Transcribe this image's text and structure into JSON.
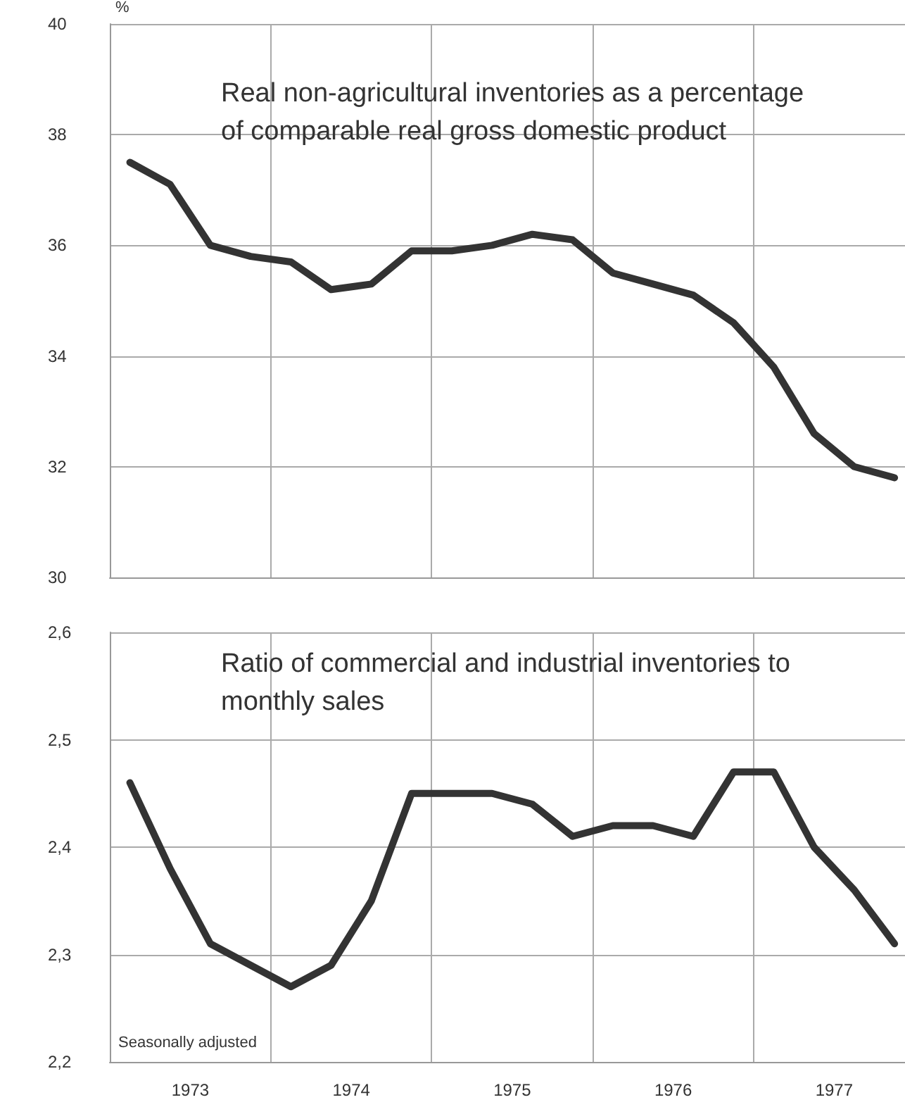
{
  "chart_data": [
    {
      "type": "line",
      "title": "Real non-agricultural inventories as a percentage of comparable real gross domestic product",
      "ylabel": "%",
      "x": [
        1973.125,
        1973.375,
        1973.625,
        1973.875,
        1974.125,
        1974.375,
        1974.625,
        1974.875,
        1975.125,
        1975.375,
        1975.625,
        1975.875,
        1976.125,
        1976.375,
        1976.625,
        1976.875,
        1977.125,
        1977.375,
        1977.625,
        1977.875
      ],
      "values": [
        37.5,
        37.1,
        36.0,
        35.8,
        35.7,
        35.2,
        35.3,
        35.9,
        35.9,
        36.0,
        36.2,
        36.1,
        35.5,
        35.3,
        35.1,
        34.6,
        33.8,
        32.6,
        32.0,
        31.8
      ],
      "color": "#333333",
      "line_style": "solid",
      "marker": "none",
      "xlim": [
        1973,
        1977.94
      ],
      "xticks": [
        {
          "value": 1974,
          "label": null
        },
        {
          "value": 1975,
          "label": null
        },
        {
          "value": 1976,
          "label": null
        },
        {
          "value": 1977,
          "label": null
        }
      ],
      "ylim": [
        30,
        40
      ],
      "yticks": [
        30,
        32,
        34,
        36,
        38,
        40
      ],
      "grid": true,
      "tick_labels": "y"
    },
    {
      "type": "line",
      "title": "Ratio of commercial and industrial inventories to monthly sales",
      "annotations": [
        "Seasonally adjusted"
      ],
      "x": [
        1973.125,
        1973.375,
        1973.625,
        1973.875,
        1974.125,
        1974.375,
        1974.625,
        1974.875,
        1975.125,
        1975.375,
        1975.625,
        1975.875,
        1976.125,
        1976.375,
        1976.625,
        1976.875,
        1977.125,
        1977.375,
        1977.625,
        1977.875
      ],
      "values": [
        2.46,
        2.38,
        2.31,
        2.29,
        2.27,
        2.29,
        2.35,
        2.45,
        2.45,
        2.45,
        2.44,
        2.41,
        2.42,
        2.42,
        2.41,
        2.47,
        2.47,
        2.4,
        2.36,
        2.31
      ],
      "color": "#333333",
      "line_style": "solid",
      "marker": "none",
      "xlim": [
        1973,
        1977.94
      ],
      "xticks": [
        {
          "value": 1973.5,
          "label": "1973"
        },
        {
          "value": 1974,
          "label": null
        },
        {
          "value": 1974.5,
          "label": "1974"
        },
        {
          "value": 1975,
          "label": null
        },
        {
          "value": 1975.5,
          "label": "1975"
        },
        {
          "value": 1976,
          "label": null
        },
        {
          "value": 1976.5,
          "label": "1976"
        },
        {
          "value": 1977,
          "label": null
        },
        {
          "value": 1977.5,
          "label": "1977"
        }
      ],
      "ylim": [
        2.2,
        2.6
      ],
      "yticks": [
        {
          "value": 2.2,
          "label": "2,2"
        },
        {
          "value": 2.3,
          "label": "2,3"
        },
        {
          "value": 2.4,
          "label": "2,4"
        },
        {
          "value": 2.5,
          "label": "2,5"
        },
        {
          "value": 2.6,
          "label": "2,6"
        }
      ],
      "grid": true
    }
  ]
}
